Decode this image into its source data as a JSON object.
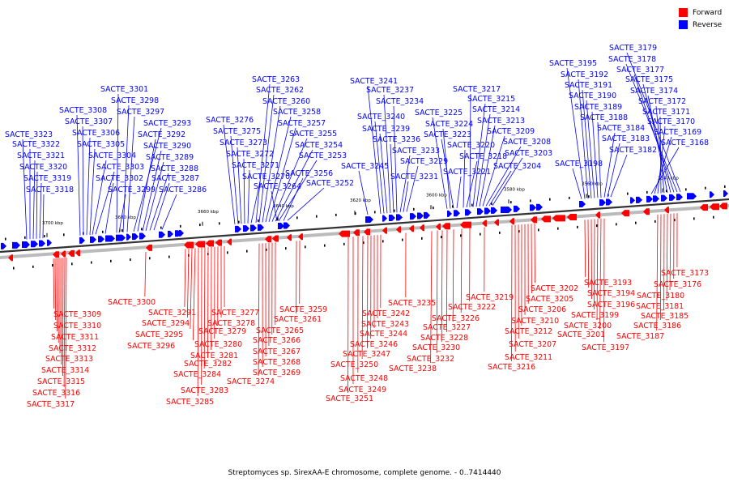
{
  "legend": {
    "forward": {
      "label": "Forward",
      "color": "#ff0000"
    },
    "reverse": {
      "label": "Reverse",
      "color": "#0000ff"
    }
  },
  "caption": "Streptomyces sp. SirexAA-E chromosome, complete genome. - 0..7414440",
  "axis_ticks": [
    "3700 kbp",
    "3680 kbp",
    "3660 kbp",
    "3640 kbp",
    "3620 kbp",
    "3600 kbp",
    "3580 kbp",
    "3560 kbp",
    "3540 kbp"
  ],
  "reverse_genes": [
    "SACTE_3318",
    "SACTE_3319",
    "SACTE_3320",
    "SACTE_3321",
    "SACTE_3322",
    "SACTE_3323",
    "SACTE_3303",
    "SACTE_3304",
    "SACTE_3305",
    "SACTE_3306",
    "SACTE_3307",
    "SACTE_3308",
    "SACTE_3301",
    "SACTE_3302",
    "SACTE_3299",
    "SACTE_3298",
    "SACTE_3297",
    "SACTE_3293",
    "SACTE_3292",
    "SACTE_3290",
    "SACTE_3289",
    "SACTE_3288",
    "SACTE_3287",
    "SACTE_3286",
    "SACTE_3276",
    "SACTE_3275",
    "SACTE_3273",
    "SACTE_3272",
    "SACTE_3271",
    "SACTE_3270",
    "SACTE_3264",
    "SACTE_3263",
    "SACTE_3262",
    "SACTE_3260",
    "SACTE_3258",
    "SACTE_3257",
    "SACTE_3255",
    "SACTE_3254",
    "SACTE_3253",
    "SACTE_3256",
    "SACTE_3252",
    "SACTE_3245",
    "SACTE_3241",
    "SACTE_3240",
    "SACTE_3239",
    "SACTE_3237",
    "SACTE_3236",
    "SACTE_3234",
    "SACTE_3233",
    "SACTE_3231",
    "SACTE_3229",
    "SACTE_3225",
    "SACTE_3224",
    "SACTE_3223",
    "SACTE_3221",
    "SACTE_3220",
    "SACTE_3218",
    "SACTE_3217",
    "SACTE_3215",
    "SACTE_3214",
    "SACTE_3213",
    "SACTE_3209",
    "SACTE_3208",
    "SACTE_3204",
    "SACTE_3203",
    "SACTE_3198",
    "SACTE_3195",
    "SACTE_3192",
    "SACTE_3191",
    "SACTE_3190",
    "SACTE_3189",
    "SACTE_3188",
    "SACTE_3184",
    "SACTE_3183",
    "SACTE_3182",
    "SACTE_3179",
    "SACTE_3178",
    "SACTE_3177",
    "SACTE_3175",
    "SACTE_3174",
    "SACTE_3172",
    "SACTE_3171",
    "SACTE_3170",
    "SACTE_3169",
    "SACTE_3168"
  ],
  "forward_genes": [
    "SACTE_3309",
    "SACTE_3310",
    "SACTE_3311",
    "SACTE_3312",
    "SACTE_3313",
    "SACTE_3314",
    "SACTE_3315",
    "SACTE_3316",
    "SACTE_3317",
    "SACTE_3300",
    "SACTE_3291",
    "SACTE_3294",
    "SACTE_3295",
    "SACTE_3296",
    "SACTE_3277",
    "SACTE_3278",
    "SACTE_3279",
    "SACTE_3280",
    "SACTE_3281",
    "SACTE_3282",
    "SACTE_3284",
    "SACTE_3283",
    "SACTE_3285",
    "SACTE_3259",
    "SACTE_3261",
    "SACTE_3265",
    "SACTE_3266",
    "SACTE_3267",
    "SACTE_3268",
    "SACTE_3269",
    "SACTE_3274",
    "SACTE_3235",
    "SACTE_3242",
    "SACTE_3243",
    "SACTE_3244",
    "SACTE_3246",
    "SACTE_3247",
    "SACTE_3250",
    "SACTE_3248",
    "SACTE_3249",
    "SACTE_3251",
    "SACTE_3219",
    "SACTE_3222",
    "SACTE_3226",
    "SACTE_3227",
    "SACTE_3228",
    "SACTE_3230",
    "SACTE_3232",
    "SACTE_3238",
    "SACTE_3202",
    "SACTE_3205",
    "SACTE_3206",
    "SACTE_3210",
    "SACTE_3212",
    "SACTE_3207",
    "SACTE_3211",
    "SACTE_3216",
    "SACTE_3193",
    "SACTE_3194",
    "SACTE_3196",
    "SACTE_3199",
    "SACTE_3200",
    "SACTE_3201",
    "SACTE_3197",
    "SACTE_3173",
    "SACTE_3176",
    "SACTE_3180",
    "SACTE_3181",
    "SACTE_3185",
    "SACTE_3186",
    "SACTE_3187"
  ]
}
